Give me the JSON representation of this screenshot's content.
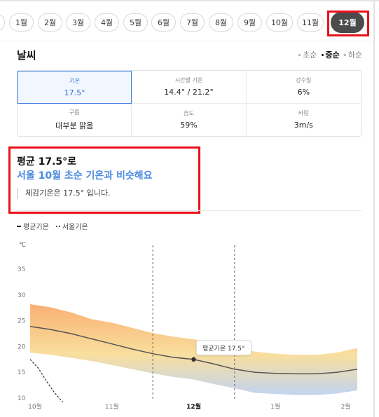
{
  "months": [
    "1월",
    "2월",
    "3월",
    "4월",
    "5월",
    "6월",
    "7월",
    "8월",
    "9월",
    "10월",
    "11월",
    "12월"
  ],
  "active_month_index": 11,
  "weather": {
    "title": "날씨",
    "periods": [
      {
        "label": "초순",
        "active": false
      },
      {
        "label": "중순",
        "active": true
      },
      {
        "label": "하순",
        "active": false
      }
    ]
  },
  "stats": [
    {
      "label": "기온",
      "value": "17.5°",
      "selected": true
    },
    {
      "label": "시간별 기온",
      "value": "14.4° / 21.2°",
      "selected": false
    },
    {
      "label": "강수일",
      "value": "6%",
      "selected": false
    },
    {
      "label": "구름",
      "value": "대부분 맑음",
      "selected": false
    },
    {
      "label": "습도",
      "value": "59%",
      "selected": false
    },
    {
      "label": "바람",
      "value": "3m/s",
      "selected": false
    }
  ],
  "summary": {
    "line1": "평균 17.5°로",
    "line2": "서울 10월 초순 기온과 비슷해요",
    "feels_like": "체감기온은 17.5° 입니다."
  },
  "legend": {
    "average": "평균기온",
    "seoul": "서울기온"
  },
  "chart_data": {
    "type": "line",
    "unit": "℃",
    "ylim": [
      10,
      40
    ],
    "yticks": [
      10,
      15,
      20,
      25,
      30,
      35
    ],
    "x_ticks": [
      {
        "label": "10월",
        "x": 0.06
      },
      {
        "label": "11월",
        "x": 1.0
      },
      {
        "label": "12월",
        "x": 2.0
      },
      {
        "label": "1월",
        "x": 3.0
      },
      {
        "label": "2월",
        "x": 3.86
      }
    ],
    "series": [
      {
        "name": "평균기온",
        "x": [
          0.0,
          0.25,
          0.5,
          0.75,
          1.0,
          1.25,
          1.5,
          1.75,
          2.0,
          2.25,
          2.5,
          2.75,
          3.0,
          3.25,
          3.5,
          3.75,
          4.0
        ],
        "values": [
          23.9,
          23.3,
          22.5,
          21.5,
          20.5,
          19.5,
          18.6,
          17.9,
          17.5,
          16.6,
          15.6,
          15.0,
          14.8,
          14.7,
          14.7,
          15.0,
          15.6
        ]
      },
      {
        "name": "서울기온",
        "x": [
          0.0,
          0.1,
          0.2,
          0.3,
          0.4
        ],
        "values": [
          17.5,
          15.8,
          13.3,
          11.0,
          9.2
        ]
      }
    ],
    "band_upper": [
      28.2,
      27.6,
      26.6,
      25.3,
      24.6,
      23.6,
      22.6,
      21.9,
      21.4,
      20.7,
      19.7,
      19.0,
      18.6,
      18.4,
      18.4,
      18.8,
      19.7
    ],
    "band_lower": [
      18.8,
      18.4,
      17.8,
      17.2,
      16.4,
      15.6,
      14.8,
      14.1,
      13.6,
      12.7,
      11.9,
      11.0,
      10.8,
      10.6,
      10.6,
      10.9,
      11.5
    ],
    "marker": {
      "x": 2.0,
      "value": 17.5,
      "label": "평균기온 17.5°"
    },
    "dashed_verticals": [
      1.5,
      2.5
    ]
  }
}
